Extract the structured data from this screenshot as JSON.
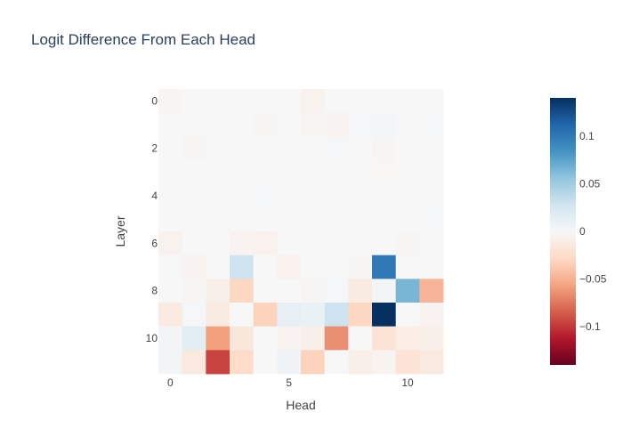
{
  "chart_data": {
    "type": "heatmap",
    "title": "Logit Difference From Each Head",
    "xlabel": "Head",
    "ylabel": "Layer",
    "x_ticks": [
      0,
      5,
      10
    ],
    "y_ticks": [
      0,
      2,
      4,
      6,
      8,
      10
    ],
    "zmin": -0.14,
    "zmax": 0.14,
    "colorscale": "RdBu",
    "colorbar_ticks": [
      {
        "value": 0.1,
        "label": "0.1"
      },
      {
        "value": 0.05,
        "label": "0.05"
      },
      {
        "value": 0,
        "label": "0"
      },
      {
        "value": -0.05,
        "label": "−0.05"
      },
      {
        "value": -0.1,
        "label": "−0.1"
      }
    ],
    "z": [
      [
        -0.003,
        0.0,
        0.0,
        0.0,
        0.0,
        0.0,
        -0.006,
        0.0,
        0.0,
        0.0,
        0.0,
        0.0
      ],
      [
        0.0,
        0.0,
        0.0,
        0.0,
        -0.002,
        0.0,
        -0.002,
        -0.004,
        0.002,
        0.003,
        0.0,
        0.002
      ],
      [
        0.0,
        -0.002,
        0.0,
        0.0,
        0.0,
        0.0,
        0.0,
        0.002,
        0.0,
        -0.002,
        0.0,
        0.0
      ],
      [
        0.0,
        0.0,
        0.0,
        0.0,
        0.0,
        0.0,
        0.0,
        0.0,
        0.0,
        -0.001,
        0.0,
        0.0
      ],
      [
        0.0,
        0.0,
        0.0,
        0.0,
        0.002,
        0.0,
        0.0,
        0.0,
        0.0,
        0.001,
        0.0,
        0.0
      ],
      [
        0.0,
        0.0,
        0.001,
        0.0,
        0.0,
        0.0,
        0.0,
        0.001,
        0.0,
        0.0,
        0.0,
        0.002
      ],
      [
        -0.006,
        0.0,
        0.0,
        -0.004,
        -0.006,
        0.0,
        0.0,
        0.0,
        0.0,
        0.0,
        -0.002,
        0.0
      ],
      [
        0.0,
        -0.004,
        0.0,
        0.03,
        0.0,
        -0.006,
        0.0,
        0.0,
        -0.002,
        0.1,
        0.0,
        0.0
      ],
      [
        0.0,
        -0.002,
        -0.008,
        -0.03,
        0.0,
        0.0,
        -0.002,
        0.002,
        -0.012,
        0.004,
        0.065,
        -0.048
      ],
      [
        -0.012,
        0.002,
        -0.012,
        0.0,
        -0.032,
        0.012,
        0.01,
        0.03,
        -0.03,
        0.14,
        0.0,
        -0.004
      ],
      [
        0.004,
        0.016,
        -0.058,
        -0.016,
        0.0,
        -0.004,
        -0.008,
        -0.065,
        0.0,
        -0.02,
        -0.01,
        -0.008
      ],
      [
        0.004,
        -0.014,
        -0.095,
        -0.026,
        0.0,
        0.006,
        -0.032,
        0.0,
        -0.008,
        -0.004,
        -0.02,
        -0.014
      ]
    ]
  }
}
